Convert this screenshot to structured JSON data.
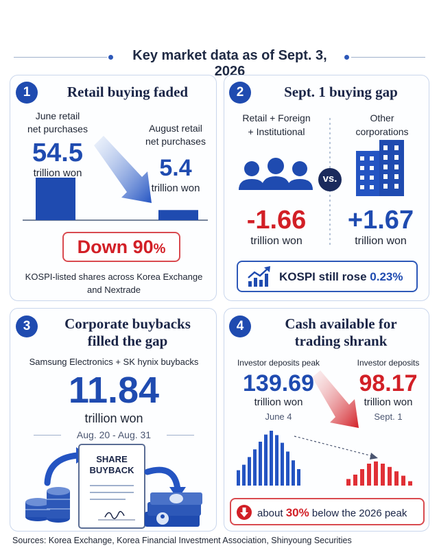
{
  "header": {
    "title": "Key market data as of Sept. 3, 2026"
  },
  "card1": {
    "number": "1",
    "title": "Retail buying faded",
    "june_label_1": "June retail",
    "june_label_2": "net purchases",
    "june_value": "54.5",
    "june_unit": "trillion won",
    "aug_label_1": "August retail",
    "aug_label_2": "net purchases",
    "aug_value": "5.4",
    "aug_unit": "trillion won",
    "change_word": "Down ",
    "change_pct": "90",
    "change_sign": "%",
    "note_1": "KOSPI-listed shares across Korea Exchange",
    "note_2": "and Nextrade",
    "bars": [
      54.5,
      5.4
    ]
  },
  "card2": {
    "number": "2",
    "title": "Sept. 1 buying gap",
    "left_label_1": "Retail + Foreign",
    "left_label_2": "+ Institutional",
    "right_label_1": "Other",
    "right_label_2": "corporations",
    "vs": "vs.",
    "left_value": "-1.66",
    "left_unit": "trillion won",
    "right_value": "+1.67",
    "right_unit": "trillion won",
    "kospi_text": "KOSPI still rose ",
    "kospi_pct": "0.23%"
  },
  "card3": {
    "number": "3",
    "title_1": "Corporate buybacks",
    "title_2": "filled the gap",
    "subtitle": "Samsung Electronics + SK hynix buybacks",
    "value": "11.84",
    "unit": "trillion won",
    "dates": "Aug. 20 - Aug. 31",
    "doc_title_1": "SHARE",
    "doc_title_2": "BUYBACK"
  },
  "card4": {
    "number": "4",
    "title_1": "Cash available for",
    "title_2": "trading shrank",
    "left_label": "Investor deposits peak",
    "left_value": "139.69",
    "left_unit": "trillion won",
    "left_date": "June 4",
    "right_label": "Investor deposits",
    "right_value": "98.17",
    "right_unit": "trillion won",
    "right_date": "Sept. 1",
    "peak_prefix": "about ",
    "peak_pct": "30%",
    "peak_suffix": " below the 2026 peak",
    "bars_blue": [
      28,
      38,
      52,
      66,
      80,
      93,
      100,
      92,
      78,
      62,
      46,
      30
    ],
    "bars_red": [
      12,
      20,
      30,
      40,
      44,
      40,
      34,
      26,
      18,
      8
    ]
  },
  "sources": "Sources:  Korea Exchange, Korea Financial Investment Association, Shinyoung Securities"
}
